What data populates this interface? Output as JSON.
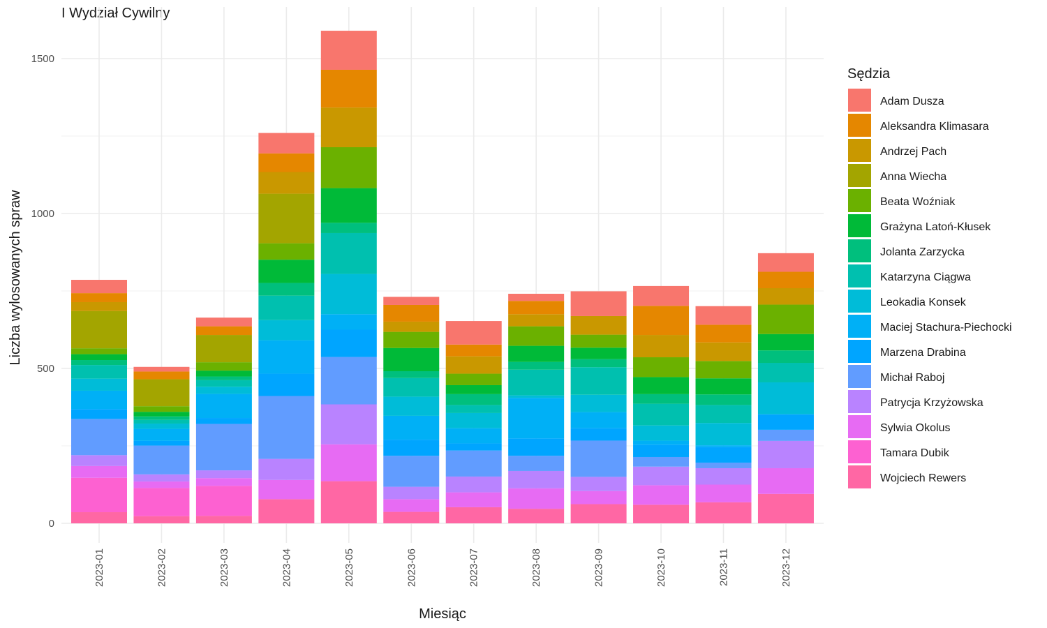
{
  "chart_data": {
    "type": "bar",
    "stacked": true,
    "title": "I Wydział Cywilny",
    "xlabel": "Miesiąc",
    "ylabel": "Liczba wylosowanych spraw",
    "ylim": [
      0,
      1600
    ],
    "yticks": [
      0,
      500,
      1000,
      1500
    ],
    "grid": true,
    "legend_title": "Sędzia",
    "legend_position": "right",
    "categories": [
      "2023-01",
      "2023-02",
      "2023-03",
      "2023-04",
      "2023-05",
      "2023-06",
      "2023-07",
      "2023-08",
      "2023-09",
      "2023-10",
      "2023-11",
      "2023-12"
    ],
    "series": [
      {
        "name": "Adam Dusza",
        "color": "#F8766D",
        "values": [
          43,
          15,
          28,
          66,
          126,
          26,
          76,
          23,
          80,
          64,
          60,
          60
        ]
      },
      {
        "name": "Aleksandra Klimasara",
        "color": "#E58700",
        "values": [
          29,
          25,
          28,
          60,
          122,
          54,
          38,
          43,
          0,
          94,
          57,
          53
        ]
      },
      {
        "name": "Andrzej Pach",
        "color": "#C99800",
        "values": [
          29,
          0,
          0,
          70,
          128,
          33,
          56,
          39,
          60,
          72,
          60,
          53
        ]
      },
      {
        "name": "Anna Wiecha",
        "color": "#A3A500",
        "values": [
          120,
          87,
          88,
          160,
          0,
          0,
          0,
          0,
          0,
          0,
          0,
          0
        ]
      },
      {
        "name": "Beata Woźniak",
        "color": "#6BB100",
        "values": [
          19,
          18,
          27,
          53,
          132,
          52,
          37,
          63,
          42,
          64,
          56,
          95
        ]
      },
      {
        "name": "Grażyna Latoń-Kłusek",
        "color": "#00BA38",
        "values": [
          19,
          15,
          19,
          75,
          112,
          75,
          29,
          52,
          37,
          55,
          52,
          53
        ]
      },
      {
        "name": "Jolanta Zarzycka",
        "color": "#00BF7D",
        "values": [
          16,
          11,
          12,
          41,
          33,
          22,
          35,
          25,
          26,
          31,
          34,
          40
        ]
      },
      {
        "name": "Katarzyna Ciągwa",
        "color": "#00C0AF",
        "values": [
          44,
          12,
          21,
          79,
          132,
          60,
          26,
          83,
          89,
          70,
          58,
          63
        ]
      },
      {
        "name": "Leokadia Konsek",
        "color": "#00BCD8",
        "values": [
          39,
          17,
          23,
          65,
          130,
          62,
          49,
          8,
          56,
          49,
          72,
          103
        ]
      },
      {
        "name": "Maciej Stachura-Piechocki",
        "color": "#00B0F6",
        "values": [
          59,
          39,
          78,
          108,
          50,
          77,
          49,
          131,
          52,
          13,
          6,
          0
        ]
      },
      {
        "name": "Marzena Drabina",
        "color": "#00A5FF",
        "values": [
          32,
          15,
          19,
          72,
          88,
          52,
          23,
          56,
          40,
          40,
          50,
          50
        ]
      },
      {
        "name": "Michał Raboj",
        "color": "#619CFF",
        "values": [
          117,
          93,
          150,
          203,
          153,
          100,
          84,
          49,
          117,
          31,
          18,
          36
        ]
      },
      {
        "name": "Patrycja Krzyżowska",
        "color": "#B983FF",
        "values": [
          35,
          23,
          25,
          68,
          129,
          40,
          51,
          56,
          46,
          60,
          53,
          88
        ]
      },
      {
        "name": "Sylwia Okolus",
        "color": "#E76BF3",
        "values": [
          38,
          21,
          25,
          62,
          119,
          41,
          48,
          66,
          42,
          63,
          57,
          83
        ]
      },
      {
        "name": "Tamara Dubik",
        "color": "#FD61D1",
        "values": [
          111,
          91,
          97,
          0,
          0,
          0,
          0,
          0,
          0,
          0,
          0,
          0
        ]
      },
      {
        "name": "Wojciech Rewers",
        "color": "#FF67A4",
        "values": [
          36,
          23,
          24,
          78,
          136,
          37,
          52,
          47,
          62,
          60,
          68,
          95
        ]
      }
    ]
  }
}
